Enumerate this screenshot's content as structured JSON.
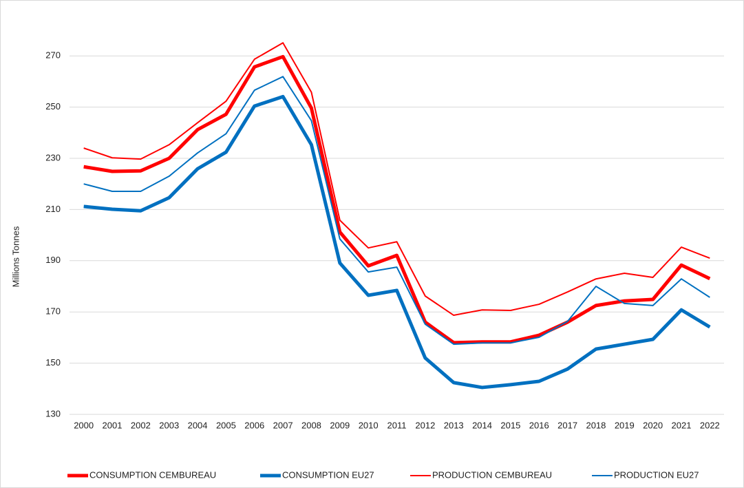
{
  "chart_data": {
    "type": "line",
    "y_label": "Millions Tonnes",
    "categories": [
      "2000",
      "2001",
      "2002",
      "2003",
      "2004",
      "2005",
      "2006",
      "2007",
      "2008",
      "2009",
      "2010",
      "2011",
      "2012",
      "2013",
      "2014",
      "2015",
      "2016",
      "2017",
      "2018",
      "2019",
      "2020",
      "2021",
      "2022"
    ],
    "ylim": [
      130,
      280
    ],
    "yticks": [
      130,
      150,
      170,
      190,
      210,
      230,
      250,
      270
    ],
    "grid": true,
    "legend": "bottom",
    "series": [
      {
        "name": "CONSUMPTION CEMBUREAU",
        "color": "#ff0000",
        "width": 5,
        "values": [
          226.7,
          224.9,
          225.1,
          230,
          241.2,
          247.2,
          265.7,
          269.7,
          249.6,
          201.2,
          188,
          192.1,
          166,
          158,
          158.3,
          158.3,
          160.9,
          166,
          172.5,
          174.3,
          174.9,
          188.3,
          183
        ]
      },
      {
        "name": "CONSUMPTION EU27",
        "color": "#0070c0",
        "width": 5,
        "values": [
          211.2,
          210.1,
          209.5,
          214.6,
          225.9,
          232.4,
          250.4,
          254.1,
          235.3,
          189.1,
          176.5,
          178.4,
          152,
          142.4,
          140.5,
          141.6,
          142.9,
          147.7,
          155.5,
          157.4,
          159.3,
          170.8,
          164.1
        ]
      },
      {
        "name": "PRODUCTION CEMBUREAU",
        "color": "#ff0000",
        "width": 2,
        "values": [
          234,
          230.2,
          229.7,
          235.3,
          243.9,
          252.3,
          268.7,
          275.1,
          255.8,
          205.8,
          195,
          197.4,
          176.2,
          168.7,
          170.8,
          170.6,
          173,
          177.8,
          182.9,
          185.1,
          183.5,
          195.3,
          191
        ]
      },
      {
        "name": "PRODUCTION EU27",
        "color": "#0070c0",
        "width": 2,
        "values": [
          220,
          217.1,
          217.1,
          223,
          232.1,
          239.6,
          256.6,
          261.9,
          244.7,
          198.5,
          185.6,
          187.5,
          165.2,
          157.4,
          157.9,
          157.9,
          160.1,
          166.3,
          180,
          173.3,
          172.5,
          182.9,
          175.7
        ]
      }
    ]
  }
}
